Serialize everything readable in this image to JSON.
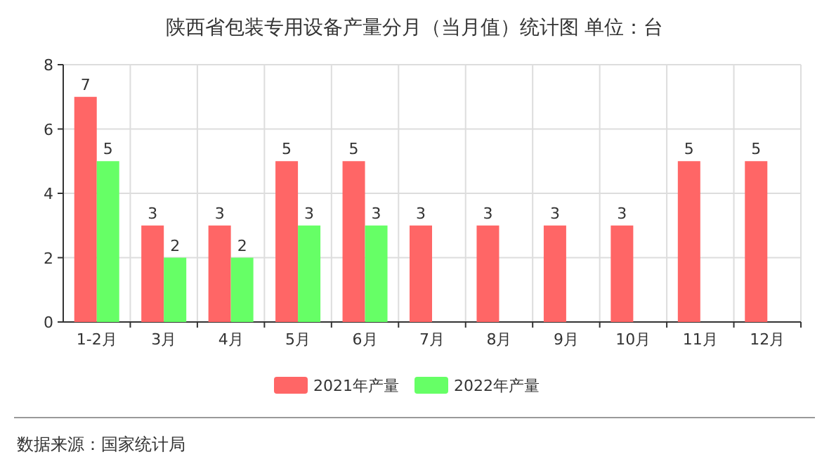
{
  "chart_data": {
    "type": "bar",
    "title": "陕西省包装专用设备产量分月（当月值）统计图 单位：台",
    "categories": [
      "1-2月",
      "3月",
      "4月",
      "5月",
      "6月",
      "7月",
      "8月",
      "9月",
      "10月",
      "11月",
      "12月"
    ],
    "series": [
      {
        "name": "2021年产量",
        "color": "#ff6666",
        "values": [
          7,
          3,
          3,
          5,
          5,
          3,
          3,
          3,
          3,
          5,
          5
        ]
      },
      {
        "name": "2022年产量",
        "color": "#66ff66",
        "values": [
          5,
          2,
          2,
          3,
          3,
          null,
          null,
          null,
          null,
          null,
          null
        ]
      }
    ],
    "ylim": [
      0,
      8
    ],
    "yticks": [
      0,
      2,
      4,
      6,
      8
    ],
    "grid": true,
    "legend": "bottom",
    "data_labels": true,
    "annotations": [
      "数据来源：国家统计局"
    ]
  }
}
